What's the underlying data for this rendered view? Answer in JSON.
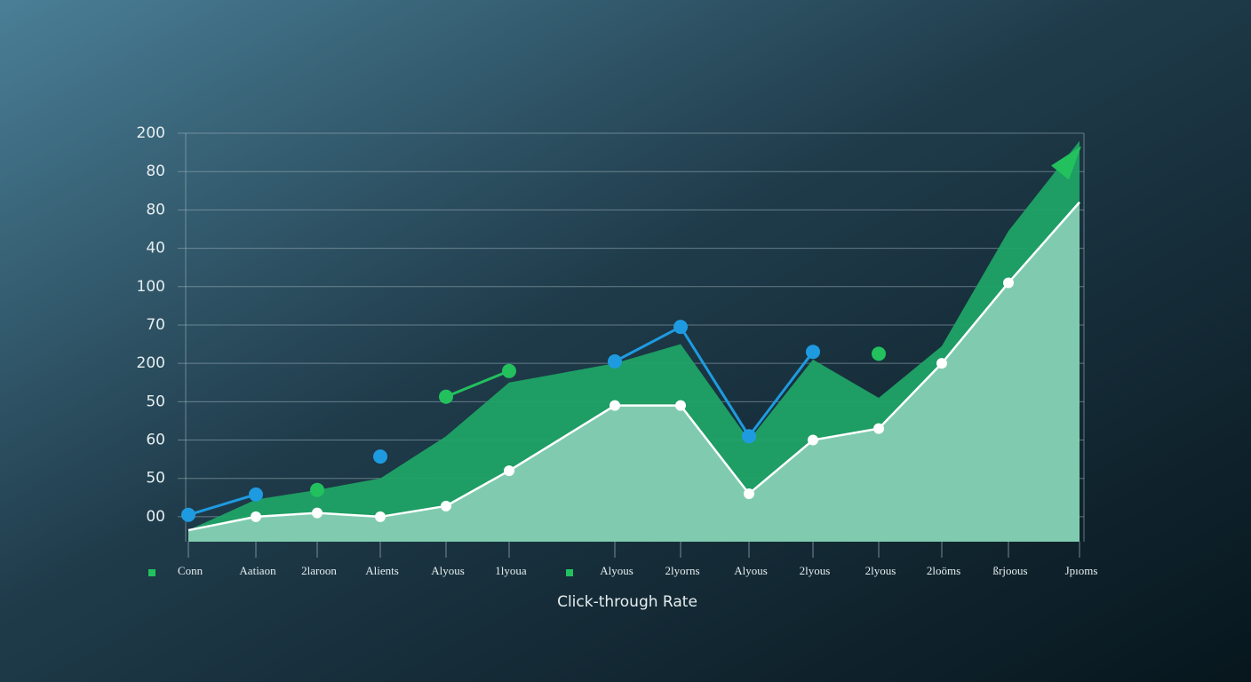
{
  "chart_data": {
    "type": "area-line",
    "x_label": "Click-through Rate",
    "categories": [
      "Conn",
      "Aatiaon",
      "2laroon",
      "Alients",
      "Alyous",
      "1lyoua",
      "Alyous",
      "2lyorns",
      "Alyous",
      "2lyous",
      "2lyous",
      "2loöms",
      "ßrjoous",
      "Jpıoms"
    ],
    "ycategories": [
      "00",
      "50",
      "60",
      "50",
      "200",
      "70",
      "100",
      "40",
      "80",
      "80",
      "200"
    ],
    "ylim": [
      -0.65,
      10
    ],
    "grid": true,
    "areas": [
      {
        "color": "#1fa366",
        "values": [
          -0.35,
          0.45,
          0.7,
          1.0,
          2.1,
          3.5,
          4.0,
          4.5,
          2.0,
          4.1,
          3.1,
          4.45,
          7.45,
          9.8
        ]
      },
      {
        "color": "#86cdb3",
        "values": [
          -0.35,
          0.0,
          0.1,
          0.0,
          0.28,
          1.2,
          2.9,
          2.9,
          0.6,
          2.0,
          2.3,
          4.0,
          6.1,
          8.2
        ]
      }
    ],
    "series": [
      {
        "color": "#1e9be0",
        "values": [
          0.05,
          0.58,
          null,
          1.57,
          null,
          null,
          4.05,
          4.95,
          2.1,
          4.3,
          null,
          null,
          null,
          null
        ]
      },
      {
        "color": "#22c15e",
        "values": [
          null,
          null,
          0.7,
          null,
          3.13,
          3.8,
          null,
          null,
          null,
          null,
          4.25,
          null,
          null,
          9.2
        ]
      }
    ]
  }
}
